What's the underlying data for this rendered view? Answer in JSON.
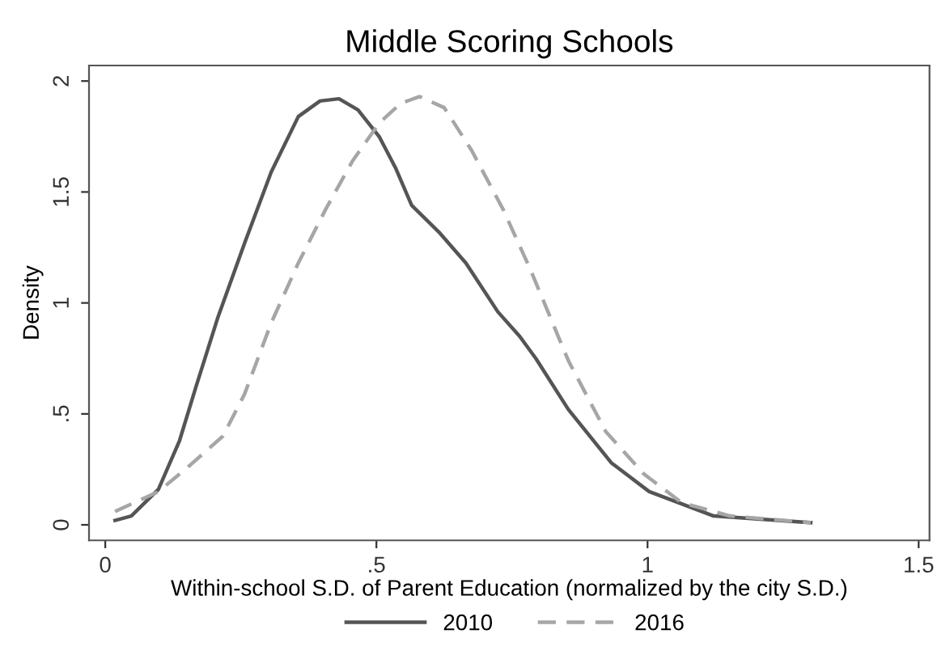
{
  "chart_data": {
    "type": "line",
    "title": "Middle Scoring Schools",
    "xlabel": "Within-school S.D. of Parent Education (normalized by the city S.D.)",
    "ylabel": "Density",
    "series": [
      {
        "name": "2010",
        "color": "#555555",
        "line_style": "solid",
        "x": [
          0.018,
          0.048,
          0.098,
          0.137,
          0.167,
          0.207,
          0.257,
          0.306,
          0.356,
          0.396,
          0.431,
          0.466,
          0.505,
          0.535,
          0.565,
          0.615,
          0.665,
          0.724,
          0.764,
          0.794,
          0.854,
          0.933,
          1.003,
          1.122,
          1.301
        ],
        "values": [
          0.02,
          0.04,
          0.16,
          0.38,
          0.62,
          0.93,
          1.27,
          1.59,
          1.84,
          1.91,
          1.92,
          1.87,
          1.75,
          1.61,
          1.44,
          1.32,
          1.18,
          0.96,
          0.85,
          0.75,
          0.52,
          0.28,
          0.15,
          0.04,
          0.01
        ]
      },
      {
        "name": "2016",
        "color": "#a6a6a6",
        "line_style": "dashed",
        "x": [
          0.018,
          0.098,
          0.157,
          0.217,
          0.257,
          0.306,
          0.356,
          0.406,
          0.456,
          0.505,
          0.545,
          0.58,
          0.625,
          0.675,
          0.734,
          0.784,
          0.854,
          0.923,
          0.993,
          1.063,
          1.152,
          1.301
        ],
        "values": [
          0.06,
          0.15,
          0.27,
          0.4,
          0.59,
          0.91,
          1.18,
          1.42,
          1.64,
          1.81,
          1.9,
          1.93,
          1.88,
          1.69,
          1.42,
          1.15,
          0.74,
          0.42,
          0.23,
          0.1,
          0.04,
          0.01
        ]
      }
    ],
    "xlim": [
      -0.03,
      1.52
    ],
    "ylim": [
      -0.07,
      2.07
    ],
    "xticks": [
      0,
      {
        "value": 0.5,
        "label": ".5"
      },
      1,
      {
        "value": 1.5,
        "label": "1.5"
      }
    ],
    "yticks": [
      0,
      {
        "value": 0.5,
        "label": ".5"
      },
      1,
      {
        "value": 1.5,
        "label": "1.5"
      },
      2
    ],
    "grid": false,
    "legend": "bottom"
  }
}
